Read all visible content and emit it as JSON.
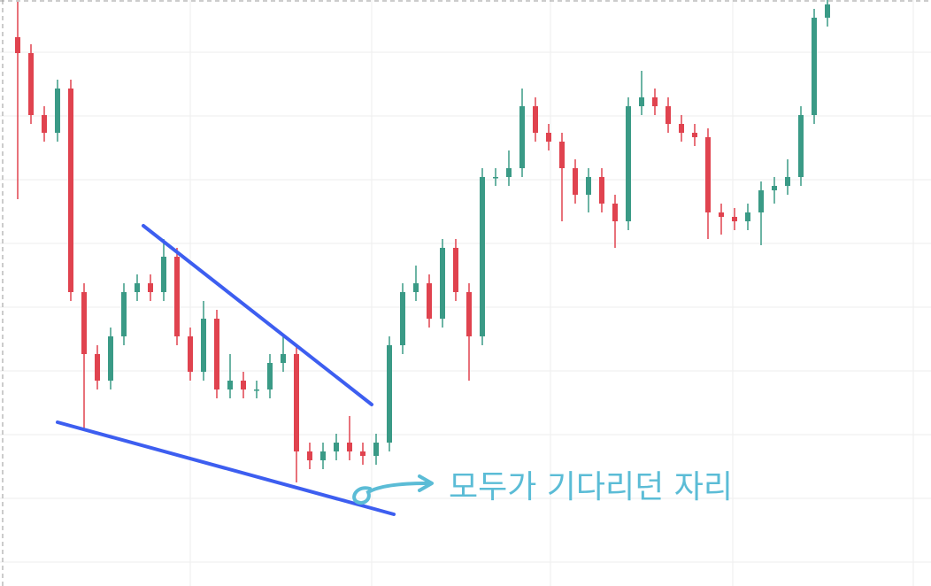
{
  "chart_data": {
    "type": "candlestick",
    "annotation": "모두가 기다리던 자리",
    "open": [
      620,
      602,
      532,
      512,
      562,
      332,
      262,
      232,
      282,
      332,
      342,
      332,
      372,
      282,
      242,
      302,
      222,
      232,
      222,
      222,
      252,
      262,
      152,
      142,
      152,
      162,
      152,
      147,
      162,
      272,
      332,
      342,
      302,
      382,
      332,
      282,
      462,
      462,
      472,
      542,
      512,
      502,
      472,
      442,
      462,
      432,
      412,
      542,
      552,
      542,
      522,
      512,
      507,
      422,
      417,
      412,
      422,
      447,
      452,
      462,
      532,
      642
    ],
    "high": [
      660,
      612,
      542,
      572,
      572,
      342,
      272,
      292,
      342,
      352,
      352,
      392,
      382,
      292,
      322,
      312,
      262,
      242,
      232,
      262,
      282,
      272,
      162,
      162,
      172,
      192,
      162,
      172,
      282,
      342,
      362,
      352,
      392,
      392,
      342,
      472,
      472,
      492,
      562,
      552,
      522,
      512,
      482,
      472,
      472,
      442,
      552,
      582,
      562,
      552,
      532,
      522,
      517,
      432,
      427,
      432,
      457,
      462,
      482,
      542,
      652,
      662
    ],
    "low": [
      437,
      522,
      502,
      502,
      322,
      177,
      222,
      222,
      272,
      322,
      322,
      322,
      272,
      232,
      232,
      212,
      212,
      212,
      212,
      212,
      242,
      117,
      132,
      132,
      142,
      142,
      137,
      137,
      152,
      262,
      322,
      292,
      292,
      322,
      232,
      272,
      452,
      452,
      462,
      502,
      492,
      412,
      432,
      422,
      422,
      382,
      402,
      532,
      532,
      512,
      502,
      497,
      392,
      397,
      402,
      402,
      385,
      432,
      442,
      452,
      522,
      632
    ],
    "close": [
      602,
      532,
      512,
      562,
      332,
      262,
      232,
      282,
      332,
      342,
      332,
      372,
      282,
      242,
      302,
      222,
      232,
      222,
      222,
      252,
      262,
      152,
      142,
      152,
      162,
      152,
      147,
      162,
      272,
      332,
      342,
      302,
      382,
      332,
      282,
      462,
      462,
      472,
      542,
      512,
      502,
      472,
      442,
      462,
      432,
      412,
      542,
      552,
      542,
      522,
      512,
      507,
      422,
      417,
      412,
      422,
      447,
      452,
      462,
      532,
      642,
      657
    ],
    "up_color": "#3a9a86",
    "down_color": "#e0434f",
    "ylim": [
      0,
      662
    ],
    "yticks": [
      27,
      99,
      171,
      243,
      315,
      387,
      459,
      531,
      603
    ],
    "grid": true
  }
}
